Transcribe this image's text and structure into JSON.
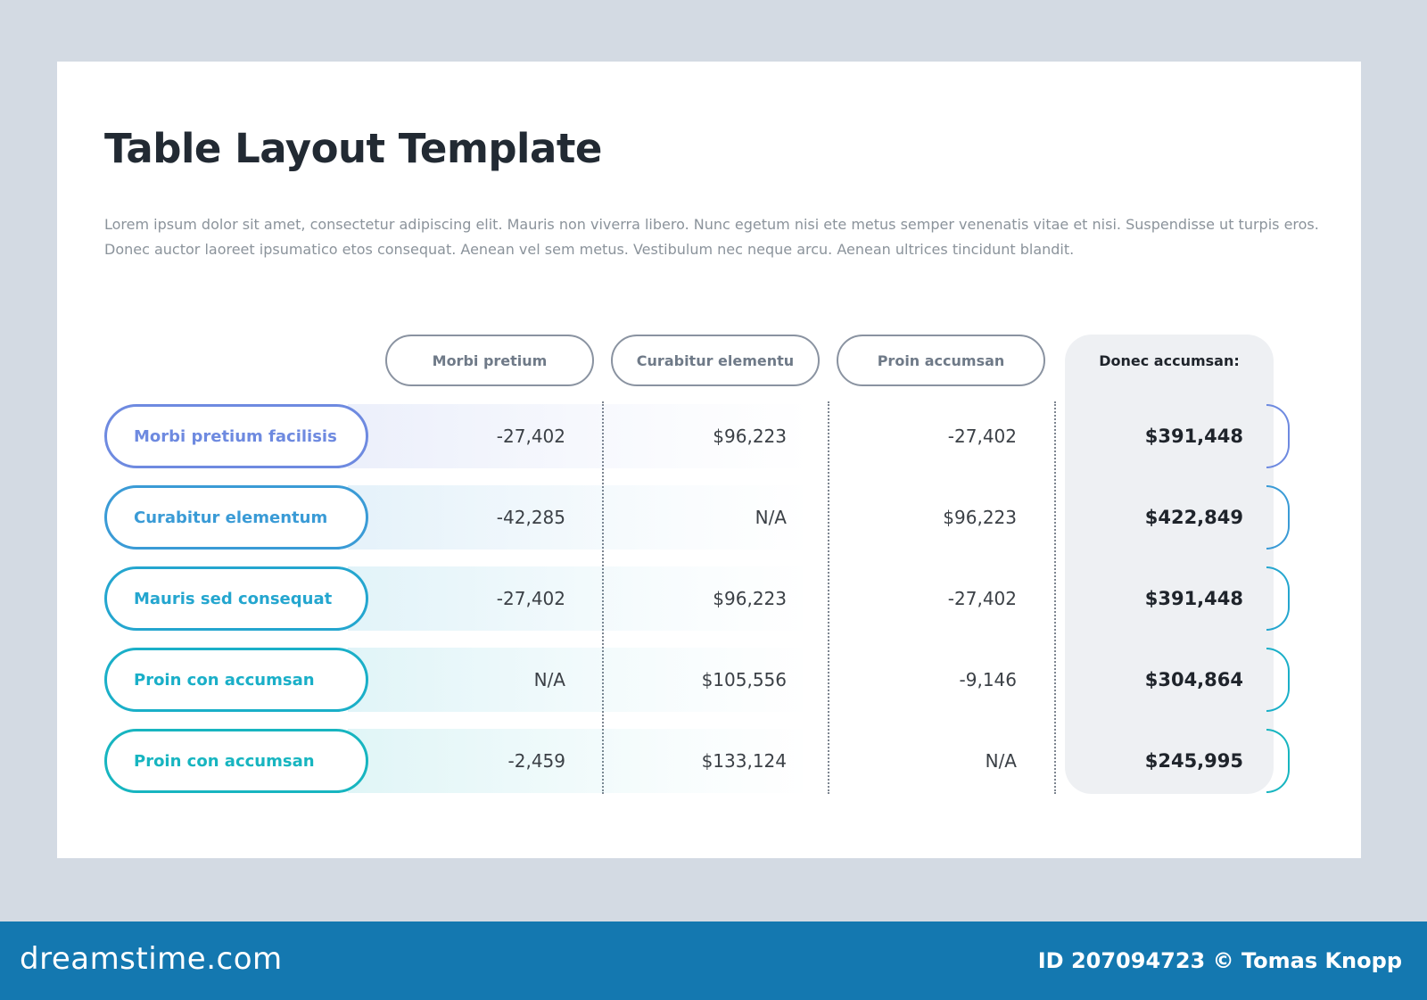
{
  "title": "Table Layout Template",
  "description": "Lorem ipsum dolor sit amet, consectetur adipiscing elit. Mauris non viverra libero. Nunc egetum nisi ete metus semper venenatis vitae et nisi. Suspendisse ut turpis eros. Donec auctor laoreet ipsumatico etos consequat. Aenean vel sem metus. Vestibulum nec neque arcu. Aenean ultrices tincidunt blandit.",
  "columns": [
    "Morbi pretium",
    "Curabitur elementu",
    "Proin accumsan",
    "Donec accumsan:"
  ],
  "rows": [
    {
      "label": "Morbi pretium facilisis",
      "color": "#6e8ae0",
      "values": [
        "-27,402",
        "$96,223",
        "-27,402",
        "$391,448"
      ]
    },
    {
      "label": "Curabitur elementum",
      "color": "#3a9bd6",
      "values": [
        "-42,285",
        "N/A",
        "$96,223",
        "$422,849"
      ]
    },
    {
      "label": "Mauris sed consequat",
      "color": "#24a6cf",
      "values": [
        "-27,402",
        "$96,223",
        "-27,402",
        "$391,448"
      ]
    },
    {
      "label": "Proin con accumsan",
      "color": "#1aafc8",
      "values": [
        "N/A",
        "$105,556",
        "-9,146",
        "$304,864"
      ]
    },
    {
      "label": "Proin con accumsan",
      "color": "#17b5c0",
      "values": [
        "-2,459",
        "$133,124",
        "N/A",
        "$245,995"
      ]
    }
  ],
  "footer": {
    "logo": "dreamstime.com",
    "id": "ID 207094723 © Tomas Knopp"
  }
}
